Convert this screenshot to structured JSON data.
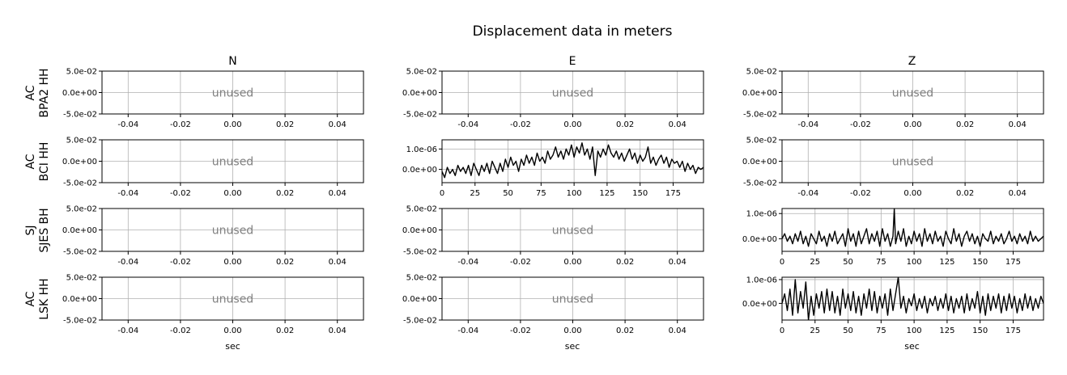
{
  "figure": {
    "title": "Displacement data in meters",
    "columns": [
      "N",
      "E",
      "Z"
    ],
    "rows": [
      {
        "network": "AC",
        "station": "BPA2 HH"
      },
      {
        "network": "AC",
        "station": "BCI HH"
      },
      {
        "network": "SJ",
        "station": "SJES BH"
      },
      {
        "network": "AC",
        "station": "LSK HH"
      }
    ],
    "xlabel": "sec",
    "unused_label": "unused"
  },
  "colors": {
    "trace": "#000000",
    "grid": "#b0b0b0",
    "unused_text": "#808080"
  },
  "chart_data": [
    {
      "row": 0,
      "col": 0,
      "type": "line",
      "unused": true,
      "xlim": [
        -0.05,
        0.05
      ],
      "ylim": [
        -0.05,
        0.05
      ],
      "xticks": [
        "-0.04",
        "-0.02",
        "0.00",
        "0.02",
        "0.04"
      ],
      "xtick_values": [
        -0.04,
        -0.02,
        0,
        0.02,
        0.04
      ],
      "yticks": [
        "5.0e-02",
        "0.0e+00",
        "-5.0e-02"
      ],
      "ytick_values": [
        0.05,
        0,
        -0.05
      ],
      "grid": true
    },
    {
      "row": 0,
      "col": 1,
      "type": "line",
      "unused": true,
      "xlim": [
        -0.05,
        0.05
      ],
      "ylim": [
        -0.05,
        0.05
      ],
      "xticks": [
        "-0.04",
        "-0.02",
        "0.00",
        "0.02",
        "0.04"
      ],
      "xtick_values": [
        -0.04,
        -0.02,
        0,
        0.02,
        0.04
      ],
      "yticks": [
        "5.0e-02",
        "0.0e+00",
        "-5.0e-02"
      ],
      "ytick_values": [
        0.05,
        0,
        -0.05
      ],
      "grid": true
    },
    {
      "row": 0,
      "col": 2,
      "type": "line",
      "unused": true,
      "xlim": [
        -0.05,
        0.05
      ],
      "ylim": [
        -0.05,
        0.05
      ],
      "xticks": [
        "-0.04",
        "-0.02",
        "0.00",
        "0.02",
        "0.04"
      ],
      "xtick_values": [
        -0.04,
        -0.02,
        0,
        0.02,
        0.04
      ],
      "yticks": [
        "5.0e-02",
        "0.0e+00",
        "-5.0e-02"
      ],
      "ytick_values": [
        0.05,
        0,
        -0.05
      ],
      "grid": true
    },
    {
      "row": 1,
      "col": 0,
      "type": "line",
      "unused": true,
      "xlim": [
        -0.05,
        0.05
      ],
      "ylim": [
        -0.05,
        0.05
      ],
      "xticks": [
        "-0.04",
        "-0.02",
        "0.00",
        "0.02",
        "0.04"
      ],
      "xtick_values": [
        -0.04,
        -0.02,
        0,
        0.02,
        0.04
      ],
      "yticks": [
        "5.0e-02",
        "0.0e+00",
        "-5.0e-02"
      ],
      "ytick_values": [
        0.05,
        0,
        -0.05
      ],
      "grid": true
    },
    {
      "row": 1,
      "col": 1,
      "type": "line",
      "unused": false,
      "xlim": [
        0,
        198
      ],
      "ylim": [
        -6.5e-07,
        1.45e-06
      ],
      "xticks": [
        "0",
        "25",
        "50",
        "75",
        "100",
        "125",
        "150",
        "175"
      ],
      "xtick_values": [
        0,
        25,
        50,
        75,
        100,
        125,
        150,
        175
      ],
      "yticks": [
        "1.0e-06",
        "0.0e+00"
      ],
      "ytick_values": [
        1e-06,
        0
      ],
      "grid": true,
      "series": [
        {
          "x": [
            0,
            2,
            4,
            6,
            8,
            10,
            12,
            14,
            16,
            18,
            20,
            22,
            24,
            26,
            28,
            30,
            32,
            34,
            36,
            38,
            40,
            42,
            44,
            46,
            48,
            50,
            52,
            54,
            56,
            58,
            60,
            62,
            64,
            66,
            68,
            70,
            72,
            74,
            76,
            78,
            80,
            82,
            84,
            86,
            88,
            90,
            92,
            94,
            96,
            98,
            100,
            102,
            104,
            106,
            108,
            110,
            112,
            114,
            116,
            118,
            120,
            122,
            124,
            126,
            128,
            130,
            132,
            134,
            136,
            138,
            140,
            142,
            144,
            146,
            148,
            150,
            152,
            154,
            156,
            158,
            160,
            162,
            164,
            166,
            168,
            170,
            172,
            174,
            176,
            178,
            180,
            182,
            184,
            186,
            188,
            190,
            192,
            194,
            196,
            198
          ],
          "y": [
            -1e-07,
            -4e-07,
            1e-07,
            -2e-07,
            0,
            -3e-07,
            2e-07,
            -1e-07,
            1e-07,
            -2e-07,
            2e-07,
            -3e-07,
            3e-07,
            0,
            -3e-07,
            2e-07,
            -1e-07,
            3e-07,
            -2e-07,
            4e-07,
            1e-07,
            -2e-07,
            3e-07,
            -1e-07,
            5e-07,
            1e-07,
            6e-07,
            2e-07,
            4e-07,
            -1e-07,
            5e-07,
            2e-07,
            7e-07,
            3e-07,
            6e-07,
            2e-07,
            8e-07,
            4e-07,
            6e-07,
            3e-07,
            9e-07,
            5e-07,
            7e-07,
            1.1e-06,
            6e-07,
            9e-07,
            5e-07,
            1e-06,
            7e-07,
            1.2e-06,
            6e-07,
            1.1e-06,
            8e-07,
            1.3e-06,
            7e-07,
            1e-06,
            5e-07,
            1.1e-06,
            -3e-07,
            9e-07,
            6e-07,
            1e-06,
            7e-07,
            1.2e-06,
            8e-07,
            6e-07,
            9e-07,
            5e-07,
            8e-07,
            4e-07,
            7e-07,
            1e-06,
            5e-07,
            8e-07,
            3e-07,
            7e-07,
            4e-07,
            6e-07,
            1.1e-06,
            3e-07,
            6e-07,
            2e-07,
            5e-07,
            7e-07,
            3e-07,
            6e-07,
            1e-07,
            5e-07,
            3e-07,
            4e-07,
            1e-07,
            4e-07,
            -1e-07,
            3e-07,
            0,
            2e-07,
            -2e-07,
            1e-07,
            0,
            1e-07
          ]
        }
      ]
    },
    {
      "row": 1,
      "col": 2,
      "type": "line",
      "unused": true,
      "xlim": [
        -0.05,
        0.05
      ],
      "ylim": [
        -0.05,
        0.05
      ],
      "xticks": [
        "-0.04",
        "-0.02",
        "0.00",
        "0.02",
        "0.04"
      ],
      "xtick_values": [
        -0.04,
        -0.02,
        0,
        0.02,
        0.04
      ],
      "yticks": [
        "5.0e-02",
        "0.0e+00",
        "-5.0e-02"
      ],
      "ytick_values": [
        0.05,
        0,
        -0.05
      ],
      "grid": true
    },
    {
      "row": 2,
      "col": 0,
      "type": "line",
      "unused": true,
      "xlim": [
        -0.05,
        0.05
      ],
      "ylim": [
        -0.05,
        0.05
      ],
      "xticks": [
        "-0.04",
        "-0.02",
        "0.00",
        "0.02",
        "0.04"
      ],
      "xtick_values": [
        -0.04,
        -0.02,
        0,
        0.02,
        0.04
      ],
      "yticks": [
        "5.0e-02",
        "0.0e+00",
        "-5.0e-02"
      ],
      "ytick_values": [
        0.05,
        0,
        -0.05
      ],
      "grid": true
    },
    {
      "row": 2,
      "col": 1,
      "type": "line",
      "unused": true,
      "xlim": [
        -0.05,
        0.05
      ],
      "ylim": [
        -0.05,
        0.05
      ],
      "xticks": [
        "-0.04",
        "-0.02",
        "0.00",
        "0.02",
        "0.04"
      ],
      "xtick_values": [
        -0.04,
        -0.02,
        0,
        0.02,
        0.04
      ],
      "yticks": [
        "5.0e-02",
        "0.0e+00",
        "-5.0e-02"
      ],
      "ytick_values": [
        0.05,
        0,
        -0.05
      ],
      "grid": true
    },
    {
      "row": 2,
      "col": 2,
      "type": "line",
      "unused": false,
      "xlim": [
        0,
        198
      ],
      "ylim": [
        -5e-07,
        1.2e-06
      ],
      "xticks": [
        "0",
        "25",
        "50",
        "75",
        "100",
        "125",
        "150",
        "175"
      ],
      "xtick_values": [
        0,
        25,
        50,
        75,
        100,
        125,
        150,
        175
      ],
      "yticks": [
        "1.0e-06",
        "0.0e+00"
      ],
      "ytick_values": [
        1e-06,
        0
      ],
      "grid": true,
      "series": [
        {
          "x": [
            0,
            2,
            4,
            6,
            8,
            10,
            12,
            14,
            16,
            18,
            20,
            22,
            24,
            26,
            28,
            30,
            32,
            34,
            36,
            38,
            40,
            42,
            44,
            46,
            48,
            50,
            52,
            54,
            56,
            58,
            60,
            62,
            64,
            66,
            68,
            70,
            72,
            74,
            76,
            78,
            80,
            82,
            84,
            85,
            86,
            88,
            90,
            92,
            94,
            96,
            98,
            100,
            102,
            104,
            106,
            108,
            110,
            112,
            114,
            116,
            118,
            120,
            122,
            124,
            126,
            128,
            130,
            132,
            134,
            136,
            138,
            140,
            142,
            144,
            146,
            148,
            150,
            152,
            154,
            156,
            158,
            160,
            162,
            164,
            166,
            168,
            170,
            172,
            174,
            176,
            178,
            180,
            182,
            184,
            186,
            188,
            190,
            192,
            194,
            196,
            198
          ],
          "y": [
            0,
            2e-07,
            -1e-07,
            1e-07,
            -2e-07,
            2e-07,
            -1e-07,
            3e-07,
            -2e-07,
            1e-07,
            -3e-07,
            2e-07,
            0,
            -2e-07,
            3e-07,
            -1e-07,
            1e-07,
            -3e-07,
            2e-07,
            -1e-07,
            3e-07,
            -2e-07,
            0,
            2e-07,
            -3e-07,
            4e-07,
            -1e-07,
            2e-07,
            -3e-07,
            3e-07,
            -2e-07,
            1e-07,
            4e-07,
            -2e-07,
            2e-07,
            -1e-07,
            3e-07,
            -3e-07,
            4e-07,
            -1e-07,
            2e-07,
            -3e-07,
            1e-07,
            1.2e-06,
            -2e-07,
            3e-07,
            -1e-07,
            4e-07,
            -3e-07,
            1e-07,
            -2e-07,
            3e-07,
            -1e-07,
            2e-07,
            -3e-07,
            4e-07,
            -1e-07,
            2e-07,
            -2e-07,
            3e-07,
            -1e-07,
            1e-07,
            -3e-07,
            3e-07,
            0,
            -2e-07,
            4e-07,
            -1e-07,
            2e-07,
            -3e-07,
            1e-07,
            3e-07,
            -1e-07,
            2e-07,
            -2e-07,
            1e-07,
            -3e-07,
            2e-07,
            0,
            -1e-07,
            3e-07,
            -2e-07,
            1e-07,
            -1e-07,
            2e-07,
            -2e-07,
            0,
            3e-07,
            -1e-07,
            1e-07,
            -2e-07,
            2e-07,
            -1e-07,
            1e-07,
            -2e-07,
            3e-07,
            -1e-07,
            1e-07,
            -1e-07,
            0,
            1e-07
          ]
        }
      ]
    },
    {
      "row": 3,
      "col": 0,
      "type": "line",
      "unused": true,
      "xlim": [
        -0.05,
        0.05
      ],
      "ylim": [
        -0.05,
        0.05
      ],
      "xticks": [
        "-0.04",
        "-0.02",
        "0.00",
        "0.02",
        "0.04"
      ],
      "xtick_values": [
        -0.04,
        -0.02,
        0,
        0.02,
        0.04
      ],
      "yticks": [
        "5.0e-02",
        "0.0e+00",
        "-5.0e-02"
      ],
      "ytick_values": [
        0.05,
        0,
        -0.05
      ],
      "grid": true
    },
    {
      "row": 3,
      "col": 1,
      "type": "line",
      "unused": true,
      "xlim": [
        -0.05,
        0.05
      ],
      "ylim": [
        -0.05,
        0.05
      ],
      "xticks": [
        "-0.04",
        "-0.02",
        "0.00",
        "0.02",
        "0.04"
      ],
      "xtick_values": [
        -0.04,
        -0.02,
        0,
        0.02,
        0.04
      ],
      "yticks": [
        "5.0e-02",
        "0.0e+00",
        "-5.0e-02"
      ],
      "ytick_values": [
        0.05,
        0,
        -0.05
      ],
      "grid": true
    },
    {
      "row": 3,
      "col": 2,
      "type": "line",
      "unused": false,
      "xlim": [
        0,
        198
      ],
      "ylim": [
        -7e-07,
        1.1e-06
      ],
      "xticks": [
        "0",
        "25",
        "50",
        "75",
        "100",
        "125",
        "150",
        "175"
      ],
      "xtick_values": [
        0,
        25,
        50,
        75,
        100,
        125,
        150,
        175
      ],
      "yticks": [
        "1.0e-06",
        "0.0e+00"
      ],
      "ytick_values": [
        1e-06,
        0
      ],
      "grid": true,
      "series": [
        {
          "x": [
            0,
            2,
            4,
            6,
            8,
            10,
            12,
            14,
            16,
            18,
            20,
            22,
            24,
            26,
            28,
            30,
            32,
            34,
            36,
            38,
            40,
            42,
            44,
            46,
            48,
            50,
            52,
            54,
            56,
            58,
            60,
            62,
            64,
            66,
            68,
            70,
            72,
            74,
            76,
            78,
            80,
            82,
            84,
            86,
            88,
            90,
            92,
            94,
            96,
            98,
            100,
            102,
            104,
            106,
            108,
            110,
            112,
            114,
            116,
            118,
            120,
            122,
            124,
            126,
            128,
            130,
            132,
            134,
            136,
            138,
            140,
            142,
            144,
            146,
            148,
            150,
            152,
            154,
            156,
            158,
            160,
            162,
            164,
            166,
            168,
            170,
            172,
            174,
            176,
            178,
            180,
            182,
            184,
            186,
            188,
            190,
            192,
            194,
            196,
            198
          ],
          "y": [
            0,
            4e-07,
            -3e-07,
            6e-07,
            -5e-07,
            1e-06,
            -4e-07,
            5e-07,
            -2e-07,
            9e-07,
            -7e-07,
            3e-07,
            -5e-07,
            4e-07,
            -2e-07,
            5e-07,
            -4e-07,
            6e-07,
            -3e-07,
            5e-07,
            -4e-07,
            3e-07,
            -5e-07,
            6e-07,
            -2e-07,
            4e-07,
            -3e-07,
            5e-07,
            -4e-07,
            3e-07,
            -5e-07,
            4e-07,
            -2e-07,
            6e-07,
            -3e-07,
            5e-07,
            -4e-07,
            3e-07,
            -2e-07,
            4e-07,
            -5e-07,
            6e-07,
            -3e-07,
            4e-07,
            1.1e-06,
            -2e-07,
            3e-07,
            -4e-07,
            2e-07,
            -1e-07,
            4e-07,
            -3e-07,
            2e-07,
            -2e-07,
            3e-07,
            -4e-07,
            2e-07,
            -1e-07,
            3e-07,
            -3e-07,
            2e-07,
            -2e-07,
            4e-07,
            -3e-07,
            3e-07,
            -4e-07,
            2e-07,
            -2e-07,
            3e-07,
            -4e-07,
            4e-07,
            -3e-07,
            2e-07,
            -2e-07,
            5e-07,
            -4e-07,
            3e-07,
            -5e-07,
            4e-07,
            -3e-07,
            3e-07,
            -2e-07,
            4e-07,
            -4e-07,
            3e-07,
            -3e-07,
            4e-07,
            -2e-07,
            3e-07,
            -4e-07,
            2e-07,
            -3e-07,
            4e-07,
            -2e-07,
            3e-07,
            -3e-07,
            2e-07,
            -2e-07,
            3e-07,
            0
          ]
        }
      ]
    }
  ]
}
